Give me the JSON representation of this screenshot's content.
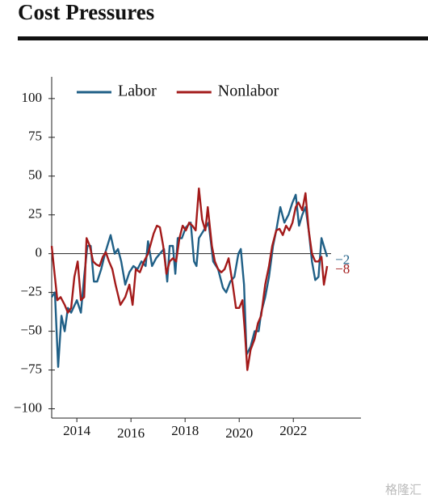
{
  "chart_data": {
    "type": "line",
    "title": "Cost Pressures",
    "xlim": [
      2013.07,
      2024.5
    ],
    "xticks": [
      2014,
      2016,
      2018,
      2020,
      2022
    ],
    "ylim": [
      -106,
      114
    ],
    "yticks": [
      {
        "value": -100,
        "label": "−100"
      },
      {
        "value": -75,
        "label": "−75"
      },
      {
        "value": -50,
        "label": "−50"
      },
      {
        "value": -25,
        "label": "−25"
      },
      0,
      25,
      50,
      75,
      100
    ],
    "legend": "top-left",
    "series": [
      {
        "name": "Labor",
        "color": "#1f5f86",
        "end_label": "−2",
        "x": [
          2013.07,
          2013.19,
          2013.31,
          2013.43,
          2013.55,
          2013.67,
          2013.79,
          2014.0,
          2014.15,
          2014.27,
          2014.39,
          2014.51,
          2014.63,
          2014.75,
          2014.9,
          2015.04,
          2015.25,
          2015.4,
          2015.52,
          2015.64,
          2015.79,
          2015.94,
          2016.09,
          2016.24,
          2016.39,
          2016.54,
          2016.63,
          2016.78,
          2016.93,
          2017.07,
          2017.22,
          2017.34,
          2017.43,
          2017.55,
          2017.64,
          2017.73,
          2017.88,
          2018.03,
          2018.21,
          2018.33,
          2018.42,
          2018.51,
          2018.69,
          2018.87,
          2019.04,
          2019.22,
          2019.4,
          2019.52,
          2019.67,
          2019.82,
          2019.97,
          2020.06,
          2020.18,
          2020.27,
          2020.42,
          2020.57,
          2020.72,
          2020.81,
          2020.96,
          2021.1,
          2021.25,
          2021.37,
          2021.52,
          2021.67,
          2021.82,
          2021.97,
          2022.09,
          2022.21,
          2022.33,
          2022.45,
          2022.57,
          2022.69,
          2022.81,
          2022.93,
          2023.04,
          2023.16,
          2023.25
        ],
        "values": [
          -28,
          -25,
          -73,
          -40,
          -50,
          -35,
          -38,
          -30,
          -38,
          -15,
          5,
          5,
          -18,
          -18,
          -10,
          0,
          12,
          0,
          3,
          -5,
          -20,
          -12,
          -8,
          -10,
          -5,
          -8,
          8,
          -8,
          -3,
          0,
          3,
          -18,
          5,
          5,
          -13,
          10,
          10,
          17,
          20,
          -5,
          -8,
          10,
          15,
          20,
          -5,
          -10,
          -22,
          -25,
          -18,
          -15,
          0,
          3,
          -20,
          -65,
          -60,
          -50,
          -50,
          -38,
          -28,
          -15,
          5,
          15,
          30,
          20,
          25,
          33,
          38,
          18,
          25,
          30,
          15,
          -5,
          -17,
          -15,
          10,
          3,
          -2
        ]
      },
      {
        "name": "Nonlabor",
        "color": "#a31a1a",
        "end_label": "−8",
        "x": [
          2013.07,
          2013.16,
          2013.28,
          2013.4,
          2013.55,
          2013.67,
          2013.79,
          2013.91,
          2014.03,
          2014.15,
          2014.27,
          2014.36,
          2014.48,
          2014.6,
          2014.72,
          2014.84,
          2014.96,
          2015.07,
          2015.19,
          2015.31,
          2015.43,
          2015.61,
          2015.79,
          2015.94,
          2016.06,
          2016.18,
          2016.33,
          2016.48,
          2016.63,
          2016.84,
          2016.96,
          2017.07,
          2017.19,
          2017.31,
          2017.43,
          2017.55,
          2017.67,
          2017.79,
          2017.91,
          2018.03,
          2018.15,
          2018.27,
          2018.39,
          2018.51,
          2018.63,
          2018.75,
          2018.84,
          2018.99,
          2019.1,
          2019.22,
          2019.34,
          2019.46,
          2019.61,
          2019.76,
          2019.88,
          2020.0,
          2020.12,
          2020.21,
          2020.3,
          2020.42,
          2020.57,
          2020.69,
          2020.81,
          2020.96,
          2021.1,
          2021.22,
          2021.37,
          2021.49,
          2021.61,
          2021.73,
          2021.85,
          2021.97,
          2022.09,
          2022.19,
          2022.33,
          2022.45,
          2022.57,
          2022.69,
          2022.81,
          2022.93,
          2023.04,
          2023.13,
          2023.25
        ],
        "values": [
          5,
          -10,
          -30,
          -28,
          -33,
          -38,
          -35,
          -15,
          -5,
          -30,
          -28,
          10,
          5,
          -5,
          -7,
          -8,
          -2,
          1,
          -5,
          -10,
          -20,
          -33,
          -28,
          -20,
          -33,
          -10,
          -12,
          -5,
          0,
          13,
          18,
          17,
          5,
          -13,
          -5,
          -3,
          -5,
          10,
          18,
          15,
          20,
          18,
          15,
          42,
          22,
          15,
          30,
          5,
          -5,
          -10,
          -12,
          -10,
          -3,
          -20,
          -35,
          -35,
          -30,
          -50,
          -75,
          -62,
          -55,
          -45,
          -40,
          -20,
          -8,
          5,
          15,
          16,
          12,
          18,
          15,
          20,
          30,
          33,
          28,
          39,
          15,
          0,
          -5,
          -5,
          -2,
          -20,
          -8
        ]
      }
    ]
  },
  "watermark": "格隆汇"
}
